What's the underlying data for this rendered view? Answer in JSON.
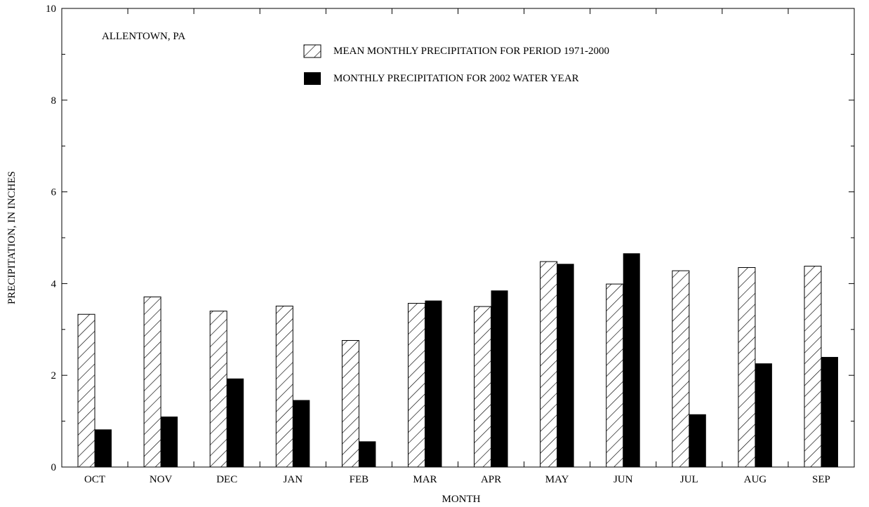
{
  "chart_data": {
    "type": "bar",
    "title": "ALLENTOWN, PA",
    "xlabel": "MONTH",
    "ylabel": "PRECIPITATION, IN INCHES",
    "categories": [
      "OCT",
      "NOV",
      "DEC",
      "JAN",
      "FEB",
      "MAR",
      "APR",
      "MAY",
      "JUN",
      "JUL",
      "AUG",
      "SEP"
    ],
    "series": [
      {
        "name": "MEAN MONTHLY PRECIPITATION FOR PERIOD 1971-2000",
        "pattern": "hatched",
        "values": [
          3.33,
          3.71,
          3.4,
          3.51,
          2.76,
          3.57,
          3.5,
          4.48,
          3.99,
          4.28,
          4.35,
          4.38
        ]
      },
      {
        "name": "MONTHLY PRECIPITATION FOR 2002 WATER YEAR",
        "pattern": "solid",
        "values": [
          0.82,
          1.1,
          1.93,
          1.46,
          0.56,
          3.63,
          3.85,
          4.43,
          4.66,
          1.15,
          2.26,
          2.4
        ]
      }
    ],
    "ylim": [
      0,
      10
    ],
    "yticks": [
      0,
      2,
      4,
      6,
      8,
      10
    ],
    "grid": false,
    "legend_position": "top-center",
    "colors": {
      "solid": "#000000",
      "hatch": "#000000",
      "background": "#ffffff"
    }
  }
}
